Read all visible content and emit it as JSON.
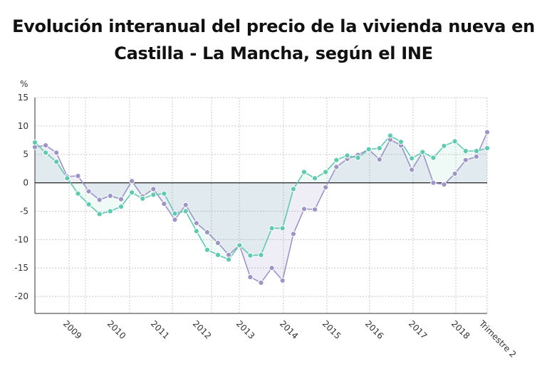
{
  "title_lines": [
    "Evolución interanual del precio de la vivienda nueva en",
    "Castilla - La Mancha, según el INE"
  ],
  "colors": {
    "series_a": "#9c95c6",
    "series_b": "#5fcab0",
    "zero_line": "#222222",
    "grid": "#c8c8c8"
  },
  "chart_data": {
    "type": "line",
    "y_unit_label": "%",
    "ylim": [
      -23,
      15
    ],
    "yticks": [
      15,
      10,
      5,
      0,
      -5,
      -10,
      -15,
      -20
    ],
    "x_labels": [
      "2009",
      "2010",
      "2011",
      "2012",
      "2013",
      "2014",
      "2015",
      "2016",
      "2017",
      "2018",
      "Trimestre 2"
    ],
    "grid": true,
    "series": [
      {
        "color": "#9c95c6",
        "values": [
          6.3,
          6.6,
          5.3,
          1.1,
          1.2,
          -1.5,
          -3.0,
          -2.3,
          -2.9,
          0.3,
          -2.4,
          -1.1,
          -3.7,
          -6.5,
          -3.9,
          -7.1,
          -8.7,
          -10.6,
          -12.7,
          -11.0,
          -16.6,
          -17.6,
          -15.0,
          -17.2,
          -9.0,
          -4.6,
          -4.7,
          -0.8,
          2.8,
          4.2,
          4.9,
          5.9,
          4.1,
          7.6,
          6.6,
          2.3,
          5.4,
          0.0,
          -0.3,
          1.6,
          4.0,
          4.6,
          8.9
        ]
      },
      {
        "color": "#5fcab0",
        "values": [
          7.1,
          5.3,
          3.7,
          0.8,
          -1.9,
          -3.8,
          -5.5,
          -5.0,
          -4.2,
          -1.7,
          -2.8,
          -2.1,
          -1.9,
          -5.4,
          -5.0,
          -8.5,
          -11.8,
          -12.7,
          -13.5,
          -11.0,
          -12.8,
          -12.7,
          -8.0,
          -8.0,
          -1.1,
          1.9,
          0.8,
          1.9,
          4.0,
          4.8,
          4.4,
          5.9,
          6.1,
          8.3,
          7.2,
          4.3,
          5.4,
          4.4,
          6.5,
          7.3,
          5.6,
          5.6,
          6.1
        ]
      }
    ]
  }
}
